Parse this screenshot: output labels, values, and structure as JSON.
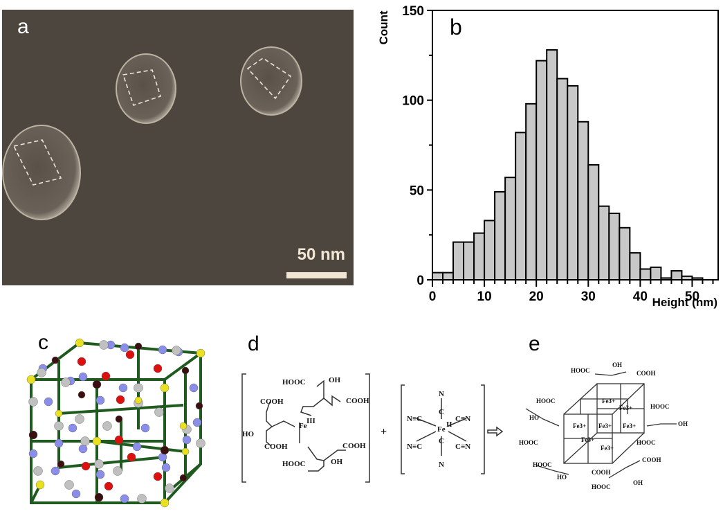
{
  "figure": {
    "panels": {
      "a": {
        "label": "a",
        "scalebar": "50 nm",
        "description": "AFM image of three nanoparticles with dashed square outlines"
      },
      "b": {
        "label": "b"
      },
      "c": {
        "label": "c",
        "description": "3D ball-and-stick model of Prussian blue lattice with water molecules"
      },
      "d": {
        "label": "d",
        "reactant1": {
          "center": "Fe",
          "oxidation": "III",
          "groups": [
            "HOOC",
            "OH",
            "COOH",
            "COOH",
            "HO",
            "COOH",
            "COOH",
            "HOOC",
            "OH"
          ]
        },
        "plus": "+",
        "reactant2": {
          "center": "Fe",
          "oxidation": "II",
          "ligands": [
            "N",
            "C",
            "N≡C",
            "C≡N",
            "N≡C",
            "C≡N",
            "C",
            "N"
          ]
        },
        "arrow": "⇨"
      },
      "e": {
        "label": "e",
        "ions": [
          "Fe3+",
          "Fe3+",
          "Fe3+",
          "Fe3+",
          "Fe3+",
          "Fe3+",
          "Fe3+"
        ],
        "groups": [
          "HOOC",
          "OH",
          "COOH",
          "HOOC",
          "HO",
          "HOOC",
          "HOOC",
          "OH",
          "HOOC",
          "HOOC",
          "COOH",
          "HO",
          "COOH",
          "HOOC",
          "OH"
        ]
      }
    }
  },
  "chart_data": {
    "type": "bar",
    "title": "",
    "panel_label": "b",
    "xlabel": "Height (nm)",
    "ylabel": "Count",
    "xlim": [
      0,
      55
    ],
    "ylim": [
      0,
      150
    ],
    "xticks": [
      0,
      10,
      20,
      30,
      40,
      50
    ],
    "yticks": [
      0,
      50,
      100,
      150
    ],
    "bin_width": 2,
    "bin_starts": [
      0,
      2,
      4,
      6,
      8,
      10,
      12,
      14,
      16,
      18,
      20,
      22,
      24,
      26,
      28,
      30,
      32,
      34,
      36,
      38,
      40,
      42,
      44,
      46,
      48,
      50
    ],
    "values": [
      4,
      4,
      21,
      21,
      26,
      33,
      49,
      57,
      82,
      98,
      122,
      128,
      112,
      108,
      88,
      64,
      41,
      37,
      29,
      15,
      6,
      7,
      1,
      5,
      2,
      1
    ],
    "bar_color": "#c8c8c8",
    "grid": false,
    "legend": null
  }
}
